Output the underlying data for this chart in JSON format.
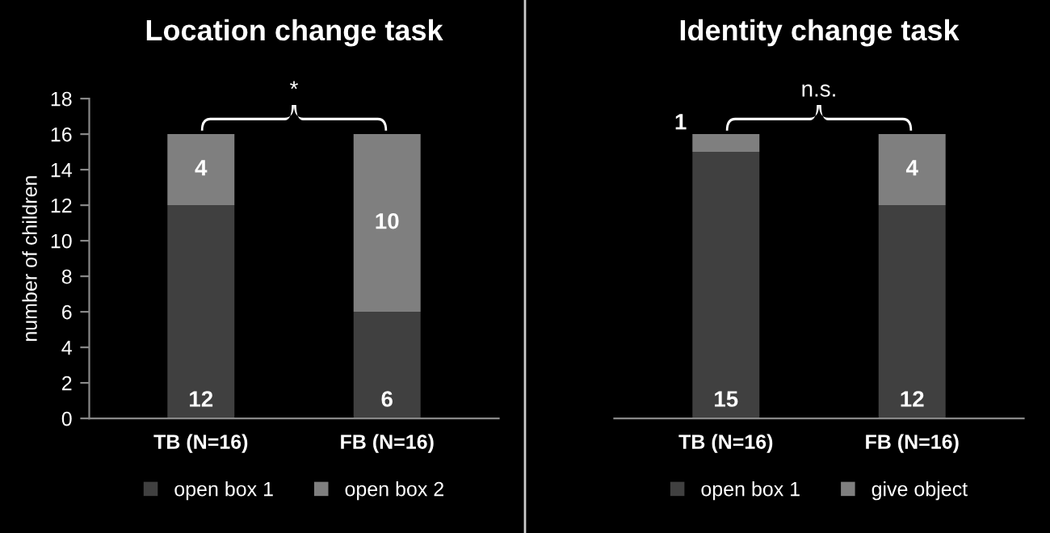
{
  "chart_data": [
    {
      "type": "bar",
      "title": "Location change task",
      "ylabel": "number of children",
      "categories": [
        "TB (N=16)",
        "FB (N=16)"
      ],
      "stacked": true,
      "series": [
        {
          "name": "open box 1",
          "color": "#404040",
          "values": [
            12,
            6
          ]
        },
        {
          "name": "open box 2",
          "color": "#7f7f7f",
          "values": [
            4,
            10
          ]
        }
      ],
      "ylim": [
        0,
        18
      ],
      "yticks": [
        0,
        2,
        4,
        6,
        8,
        10,
        12,
        14,
        16,
        18
      ],
      "data_labels": true,
      "legend": "bottom",
      "grid": false,
      "annotations": [
        "*"
      ]
    },
    {
      "type": "bar",
      "title": "Identity change task",
      "categories": [
        "TB (N=16)",
        "FB (N=16)"
      ],
      "stacked": true,
      "series": [
        {
          "name": "open box 1",
          "color": "#404040",
          "values": [
            15,
            12
          ]
        },
        {
          "name": "give object",
          "color": "#7f7f7f",
          "values": [
            1,
            4
          ]
        }
      ],
      "ylim": [
        0,
        18
      ],
      "yticks": [
        0,
        2,
        4,
        6,
        8,
        10,
        12,
        14,
        16,
        18
      ],
      "tick_labels": "x",
      "data_labels": true,
      "legend": "bottom",
      "grid": false,
      "annotations": [
        "n.s."
      ]
    }
  ]
}
